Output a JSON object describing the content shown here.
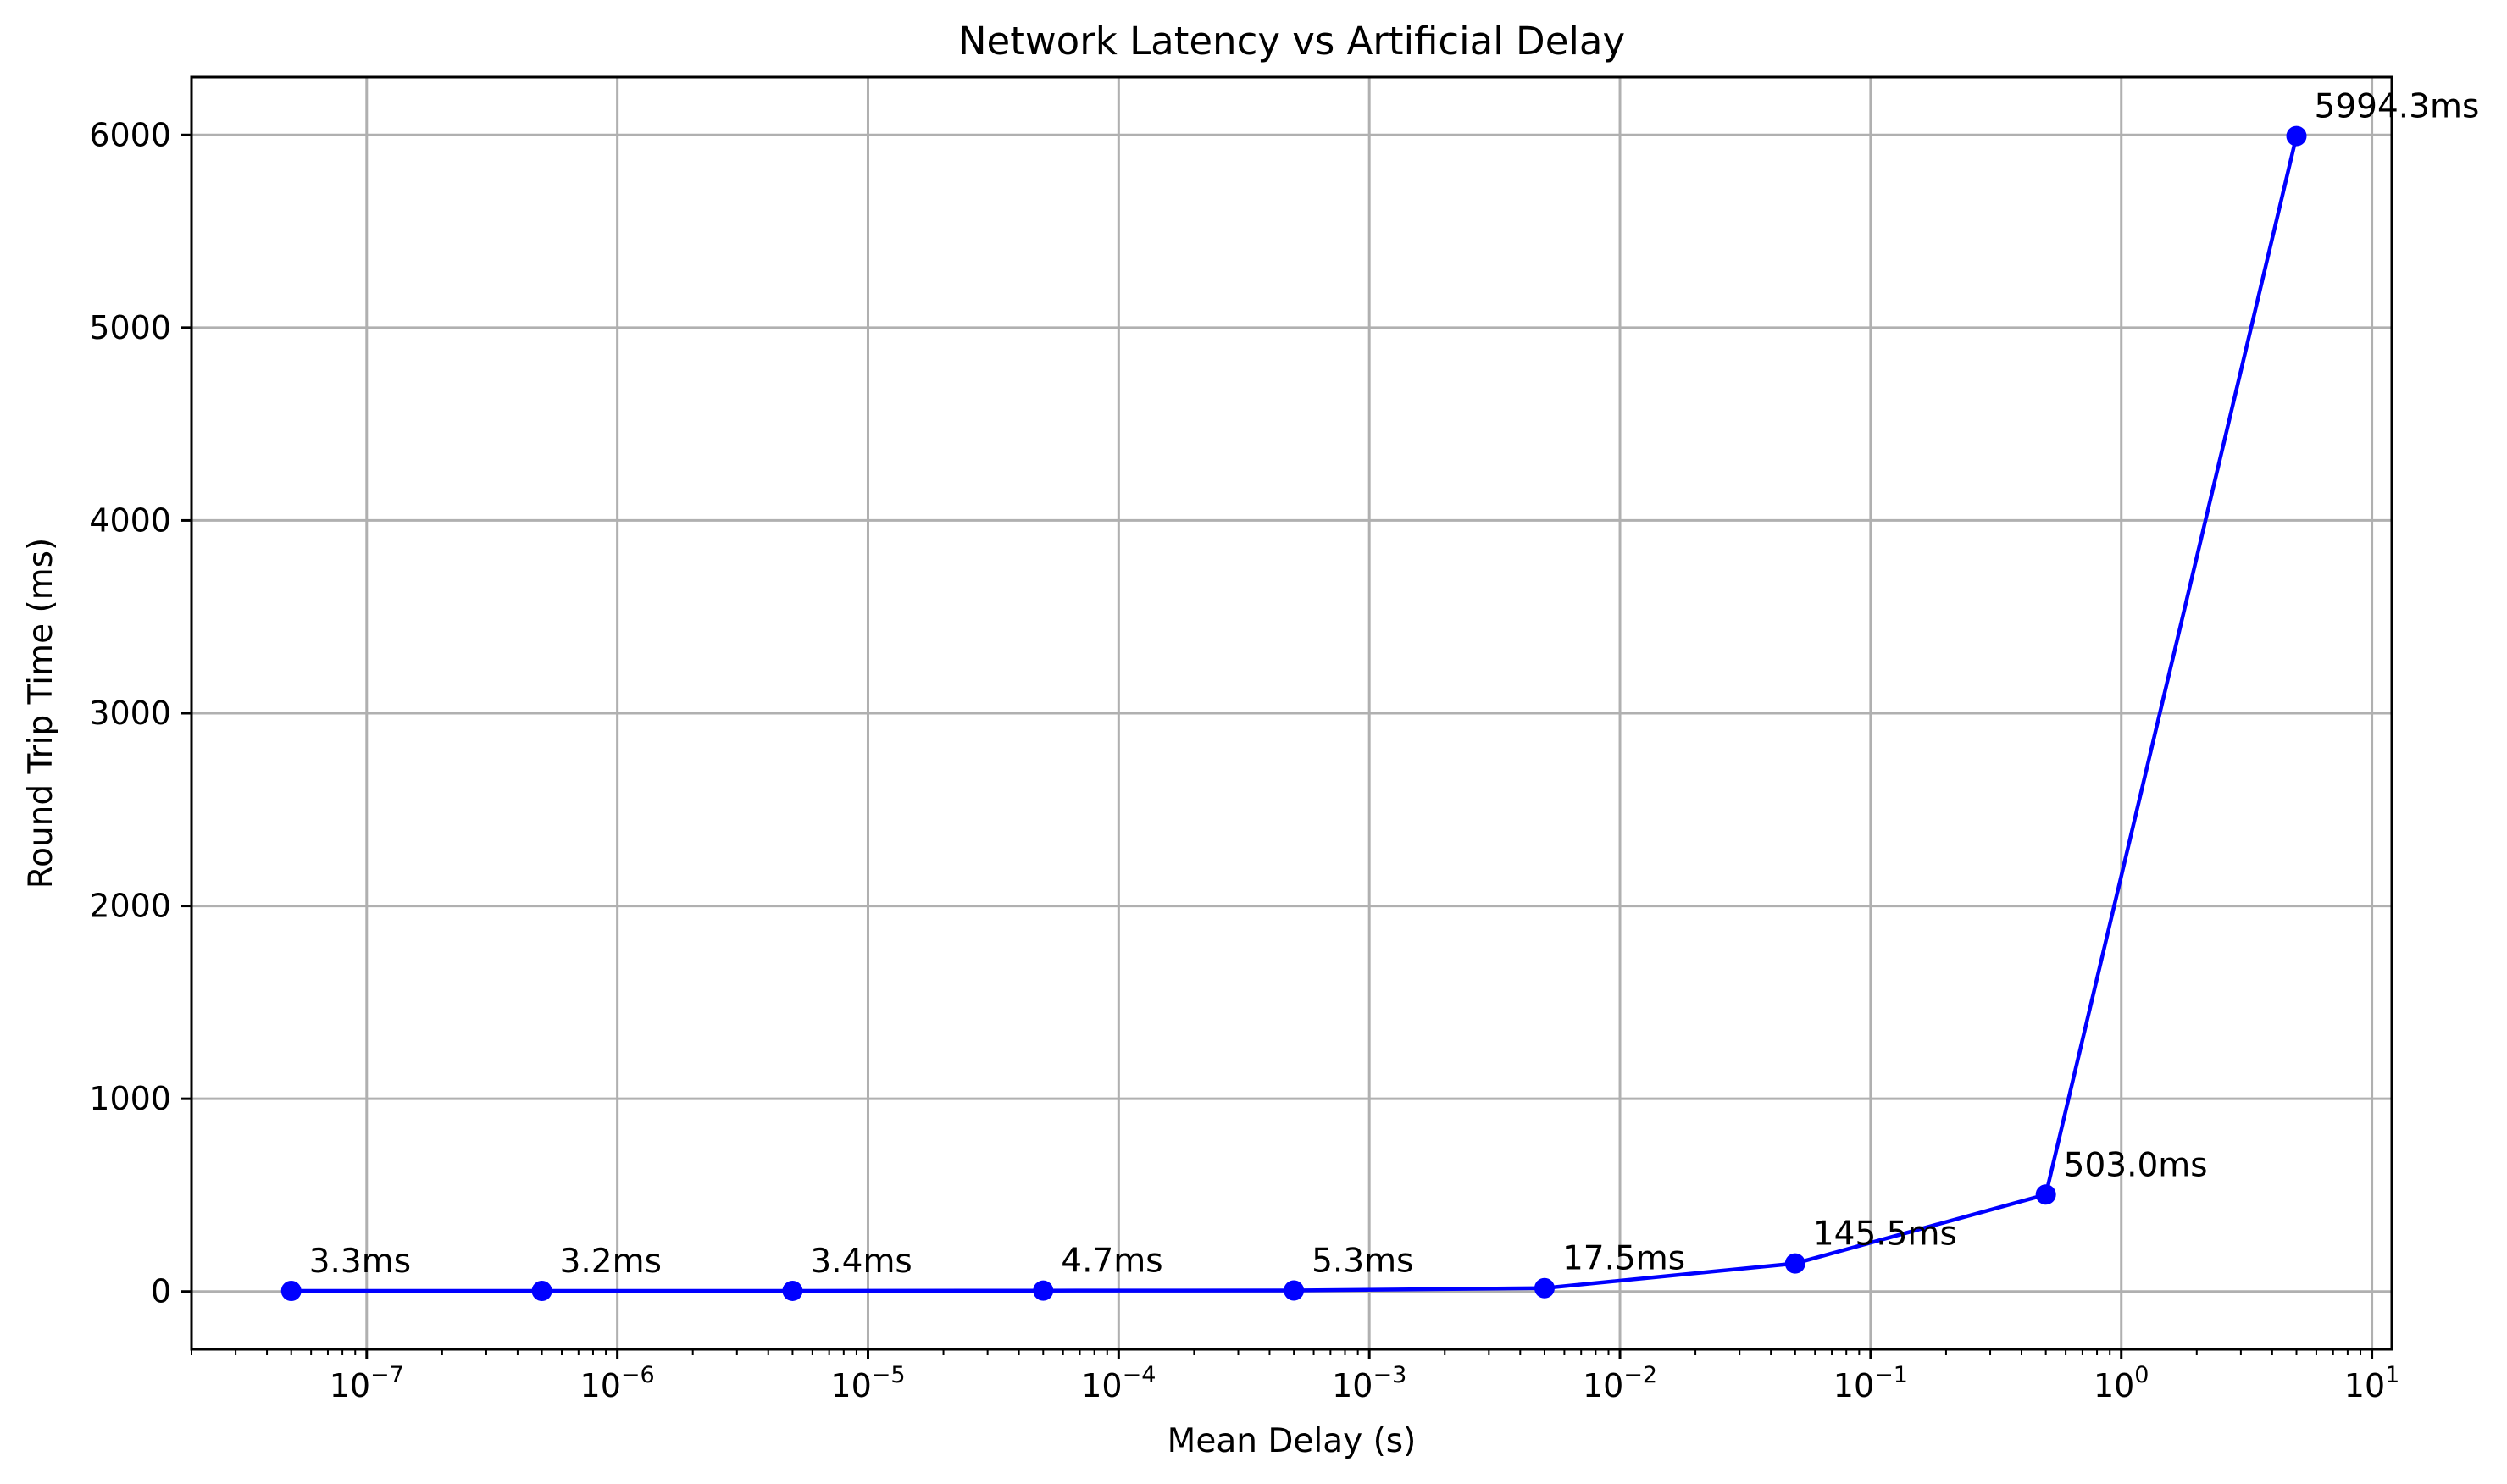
{
  "chart_data": {
    "type": "line",
    "title": "Network Latency vs Artificial Delay",
    "xlabel": "Mean Delay (s)",
    "ylabel": "Round Trip Time (ms)",
    "xscale": "log",
    "xlim": [
      2e-08,
      12
    ],
    "ylim": [
      -300,
      6300
    ],
    "grid": true,
    "x_ticks": [
      {
        "base": "10",
        "exp": "−7",
        "value": 1e-07
      },
      {
        "base": "10",
        "exp": "−6",
        "value": 1e-06
      },
      {
        "base": "10",
        "exp": "−5",
        "value": 1e-05
      },
      {
        "base": "10",
        "exp": "−4",
        "value": 0.0001
      },
      {
        "base": "10",
        "exp": "−3",
        "value": 0.001
      },
      {
        "base": "10",
        "exp": "−2",
        "value": 0.01
      },
      {
        "base": "10",
        "exp": "−1",
        "value": 0.1
      },
      {
        "base": "10",
        "exp": "0",
        "value": 1
      },
      {
        "base": "10",
        "exp": "1",
        "value": 10
      }
    ],
    "y_ticks": [
      {
        "label": "0",
        "value": 0
      },
      {
        "label": "1000",
        "value": 1000
      },
      {
        "label": "2000",
        "value": 2000
      },
      {
        "label": "3000",
        "value": 3000
      },
      {
        "label": "4000",
        "value": 4000
      },
      {
        "label": "5000",
        "value": 5000
      },
      {
        "label": "6000",
        "value": 6000
      }
    ],
    "series": [
      {
        "color": "#0000ff",
        "points": [
          {
            "x": 5e-08,
            "y": 3.3,
            "label": "3.3ms"
          },
          {
            "x": 5e-07,
            "y": 3.2,
            "label": "3.2ms"
          },
          {
            "x": 5e-06,
            "y": 3.4,
            "label": "3.4ms"
          },
          {
            "x": 5e-05,
            "y": 4.7,
            "label": "4.7ms"
          },
          {
            "x": 0.0005,
            "y": 5.3,
            "label": "5.3ms"
          },
          {
            "x": 0.005,
            "y": 17.5,
            "label": "17.5ms"
          },
          {
            "x": 0.05,
            "y": 145.5,
            "label": "145.5ms"
          },
          {
            "x": 0.5,
            "y": 503.0,
            "label": "503.0ms"
          },
          {
            "x": 5,
            "y": 5994.3,
            "label": "5994.3ms"
          }
        ]
      }
    ]
  }
}
